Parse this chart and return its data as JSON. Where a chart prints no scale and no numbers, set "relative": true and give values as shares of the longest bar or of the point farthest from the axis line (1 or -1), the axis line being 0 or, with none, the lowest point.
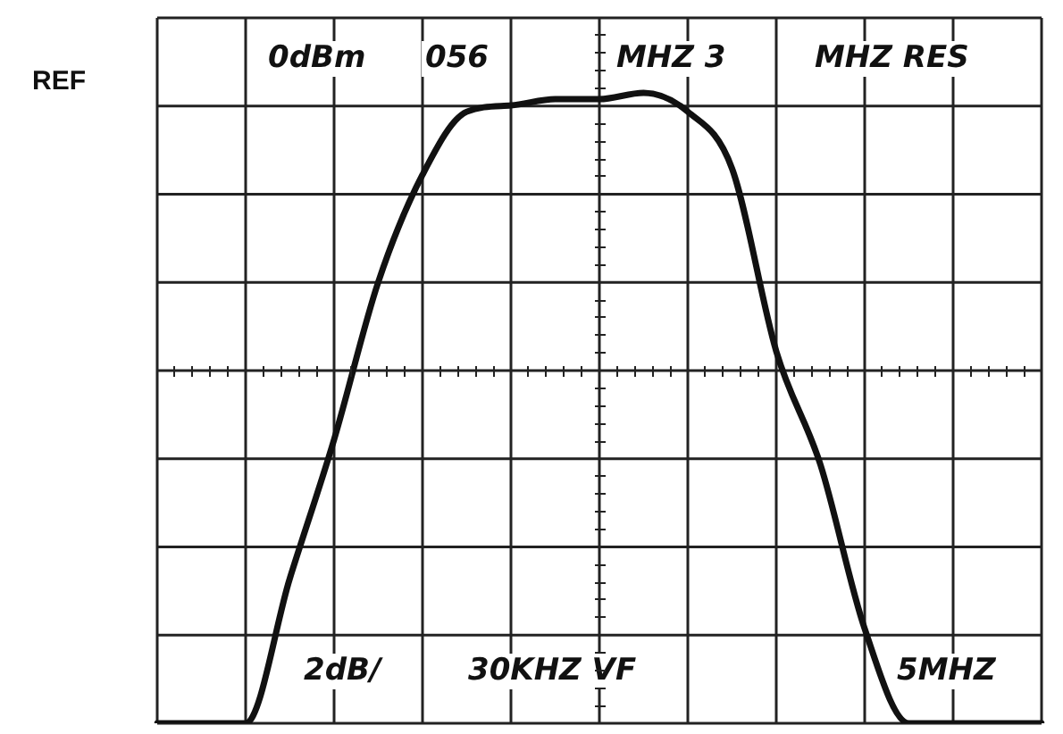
{
  "chart_data": {
    "type": "line",
    "relative": true,
    "grid": true,
    "marker": "none",
    "line_style": "solid",
    "categories": [
      null,
      null,
      null,
      null,
      null,
      null,
      null,
      null,
      null,
      null,
      null,
      null,
      null,
      null,
      null,
      null,
      null,
      null,
      null,
      null,
      null
    ],
    "series": [
      {
        "color": "#111111",
        "values": [
          0,
          0,
          0,
          0.23,
          0.45,
          0.7,
          0.87,
          0.97,
          0.98,
          0.99,
          0.99,
          1,
          0.97,
          0.88,
          0.59,
          0.41,
          0.15,
          0,
          0,
          0,
          0
        ]
      }
    ],
    "annotations": [
      "REF",
      "0dBm",
      "056",
      "MHZ 3",
      "MHZ RES",
      "2dB/",
      "30KHZ VF",
      "5MHZ"
    ]
  }
}
